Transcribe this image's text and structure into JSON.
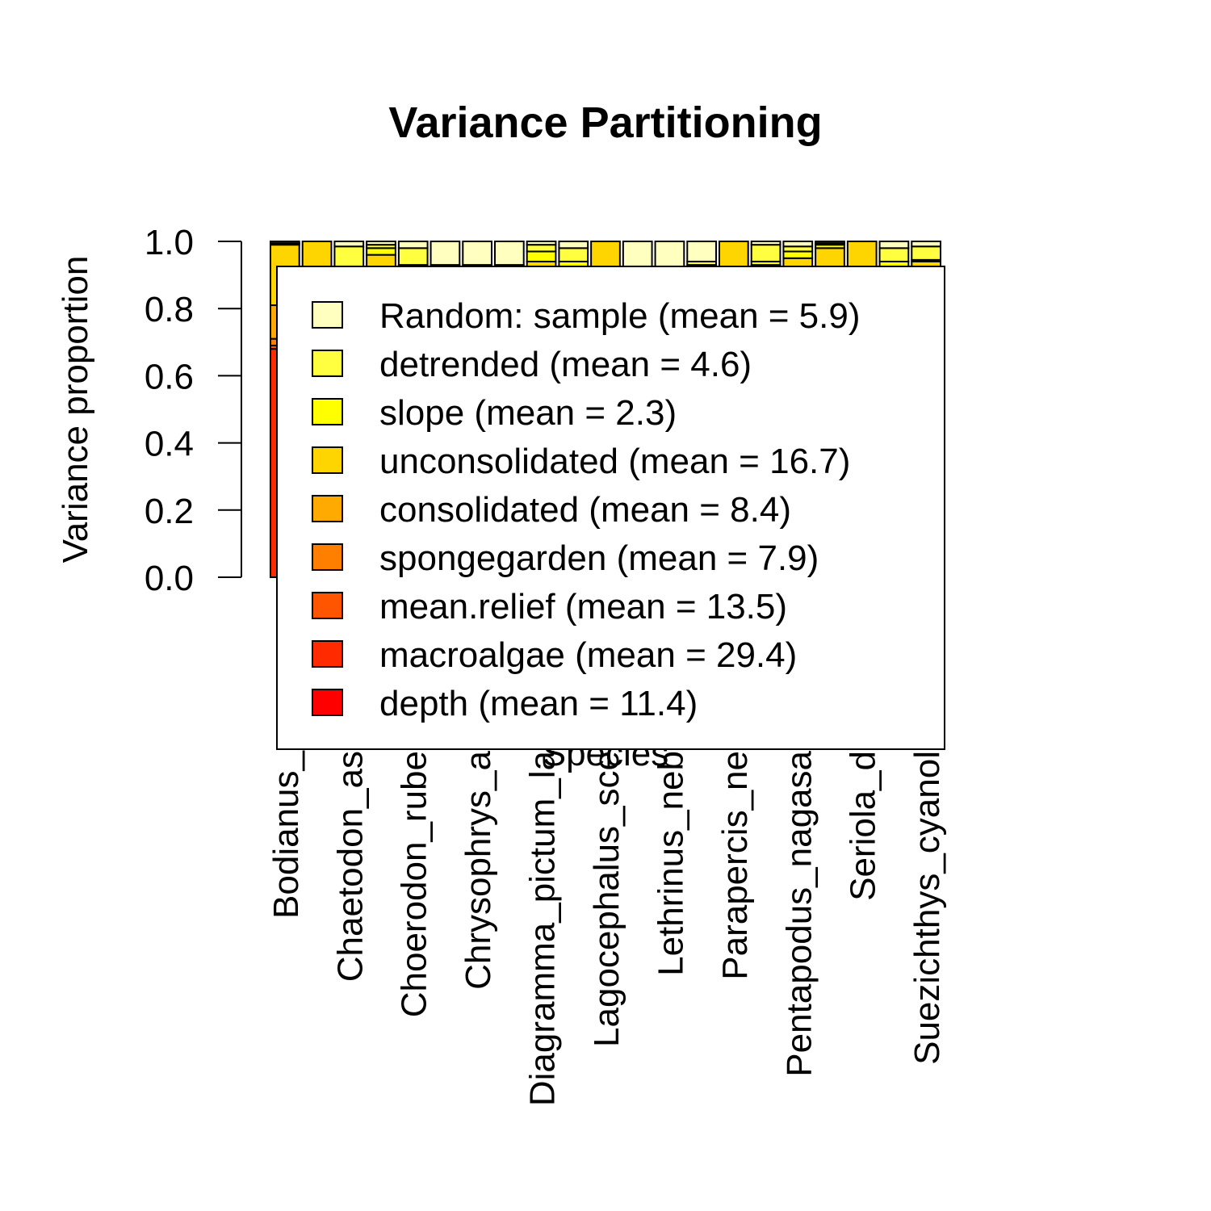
{
  "chart_data": {
    "type": "stacked_bar",
    "title": "Variance Partitioning",
    "y_label": "Variance proportion",
    "x_label": "Species",
    "ylim": [
      0,
      1
    ],
    "yticks": [
      {
        "value": 0,
        "label": "0.0"
      },
      {
        "value": 0.2,
        "label": "0.2"
      },
      {
        "value": 0.4,
        "label": "0.4"
      },
      {
        "value": 0.6,
        "label": "0.6"
      },
      {
        "value": 0.8,
        "label": "0.8"
      },
      {
        "value": 1,
        "label": "1.0"
      }
    ],
    "categories": [
      "Bodianus_",
      null,
      "Chaetodon_as",
      null,
      "Choerodon_rube",
      null,
      "Chrysophrys_a",
      null,
      "Diagramma_pictum_la",
      null,
      "Lagocephalus_sce",
      null,
      "Lethrinus_neb",
      null,
      "Parapercis_ne",
      null,
      "Pentapodus_nagasa",
      null,
      "Seriola_d",
      null,
      "Suezichthys_cyanol"
    ],
    "series": [
      {
        "name": "Random: sample (mean = 5.9)",
        "color": "#ffffbf",
        "values": [
          0.005,
          0,
          0.015,
          0.01,
          0.02,
          0.07,
          0.07,
          0.07,
          0.01,
          0.02,
          0,
          0.08,
          0.08,
          0.06,
          0,
          0.01,
          0.015,
          0.005,
          0,
          0.02,
          0.015
        ]
      },
      {
        "name": "detrended (mean = 4.6)",
        "color": "#ffff40",
        "values": [
          0.003,
          0,
          0.06,
          0.01,
          0.05,
          0.02,
          0.03,
          0.02,
          0.02,
          0.04,
          0,
          0.03,
          0.02,
          0.01,
          0,
          0.05,
          0.015,
          0.005,
          0,
          0.04,
          0.04
        ]
      },
      {
        "name": "slope (mean = 2.3)",
        "color": "#ffff00",
        "values": [
          0.002,
          0,
          0.01,
          0.02,
          0.02,
          0.01,
          0.02,
          0.01,
          0.03,
          0.02,
          0,
          0.02,
          0.02,
          0.01,
          0,
          0.01,
          0.02,
          0.01,
          0,
          0.02,
          0.005
        ]
      },
      {
        "name": "unconsolidated (mean = 16.7)",
        "color": "#ffd500",
        "values": [
          0.18,
          0.35,
          0.2,
          0.3,
          0.15,
          0.1,
          0.15,
          0.2,
          0.15,
          0.15,
          0.3,
          0.1,
          0.12,
          0.15,
          0.3,
          0.2,
          0.2,
          0.25,
          0.3,
          0.2,
          0.15
        ]
      },
      {
        "name": "consolidated (mean = 8.4)",
        "color": "#ffaa00",
        "values": [
          0.1,
          0.1,
          0.1,
          0.05,
          0.1,
          0.1,
          0.08,
          0.1,
          0.1,
          0.08,
          0.1,
          0.1,
          0.08,
          0.1,
          0.08,
          0.1,
          0.08,
          0.08,
          0.1,
          0.08,
          0.1
        ]
      },
      {
        "name": "spongegarden (mean = 7.9)",
        "color": "#ff8000",
        "values": [
          0.02,
          0.1,
          0.05,
          0.1,
          0.08,
          0.1,
          0.07,
          0.05,
          0.1,
          0.08,
          0.1,
          0.1,
          0.08,
          0.07,
          0.07,
          0.08,
          0.07,
          0.1,
          0.1,
          0.06,
          0.08
        ]
      },
      {
        "name": "mean.relief (mean = 13.5)",
        "color": "#ff5500",
        "values": [
          0.01,
          0.15,
          0.15,
          0.1,
          0.15,
          0.2,
          0.13,
          0.15,
          0.14,
          0.15,
          0.1,
          0.12,
          0.15,
          0.15,
          0.15,
          0.1,
          0.15,
          0.12,
          0.15,
          0.13,
          0.15
        ]
      },
      {
        "name": "macroalgae (mean = 29.4)",
        "color": "#ff2a00",
        "values": [
          0.68,
          0.2,
          0.3,
          0.3,
          0.3,
          0.3,
          0.35,
          0.3,
          0.3,
          0.3,
          0.3,
          0.35,
          0.3,
          0.3,
          0.3,
          0.3,
          0.3,
          0.3,
          0.25,
          0.3,
          0.3
        ]
      },
      {
        "name": "depth (mean = 11.4)",
        "color": "#ff0000",
        "values": [
          0,
          0.1,
          0.115,
          0.11,
          0.13,
          0.1,
          0.1,
          0.1,
          0.15,
          0.16,
          0.1,
          0.1,
          0.15,
          0.15,
          0.1,
          0.15,
          0.15,
          0.13,
          0.1,
          0.15,
          0.16
        ]
      }
    ]
  }
}
